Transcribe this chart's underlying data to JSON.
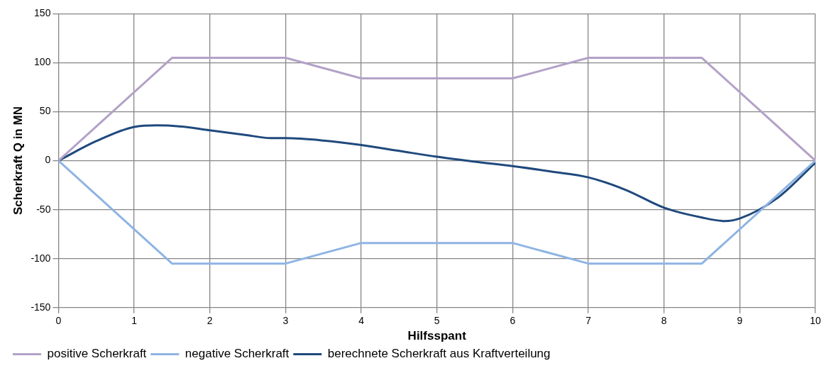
{
  "chart_data": {
    "type": "line",
    "xlabel": "Hilfsspant",
    "ylabel": "Scherkraft Q in MN",
    "xlim": [
      0,
      10
    ],
    "xticks": [
      0,
      1,
      2,
      3,
      4,
      5,
      6,
      7,
      8,
      9,
      10
    ],
    "ylim": [
      -150,
      150
    ],
    "yticks": [
      -150,
      -100,
      -50,
      0,
      50,
      100,
      150
    ],
    "grid": true,
    "legend": "bottom",
    "marker": "none",
    "line_style": "solid",
    "series": [
      {
        "name": "positive Scherkraft",
        "color": "#b3a2c7",
        "x": [
          0,
          1.5,
          3,
          4,
          6,
          7,
          8.5,
          10
        ],
        "values": [
          0,
          105,
          105,
          84,
          84,
          105,
          105,
          0
        ]
      },
      {
        "name": "negative Scherkraft",
        "color": "#8eb4e3",
        "x": [
          0,
          1.5,
          3,
          4,
          6,
          7,
          8.5,
          10
        ],
        "values": [
          0,
          -105,
          -105,
          -84,
          -84,
          -105,
          -105,
          0
        ]
      },
      {
        "name": "berechnete Scherkraft aus Kraftverteilung",
        "color": "#1f497d",
        "x": [
          0,
          0.5,
          1,
          1.3,
          1.6,
          2,
          2.5,
          2.8,
          3,
          3.5,
          4,
          4.5,
          5,
          5.5,
          6,
          6.5,
          7,
          7.5,
          8,
          8.5,
          8.8,
          9,
          9.5,
          10
        ],
        "values": [
          0,
          20,
          34.5,
          36,
          35,
          31,
          26,
          23,
          23,
          20.6,
          16,
          10,
          4,
          -1,
          -5.6,
          -11,
          -17,
          -30,
          -48,
          -58,
          -61.6,
          -59,
          -38,
          -2
        ]
      }
    ]
  }
}
